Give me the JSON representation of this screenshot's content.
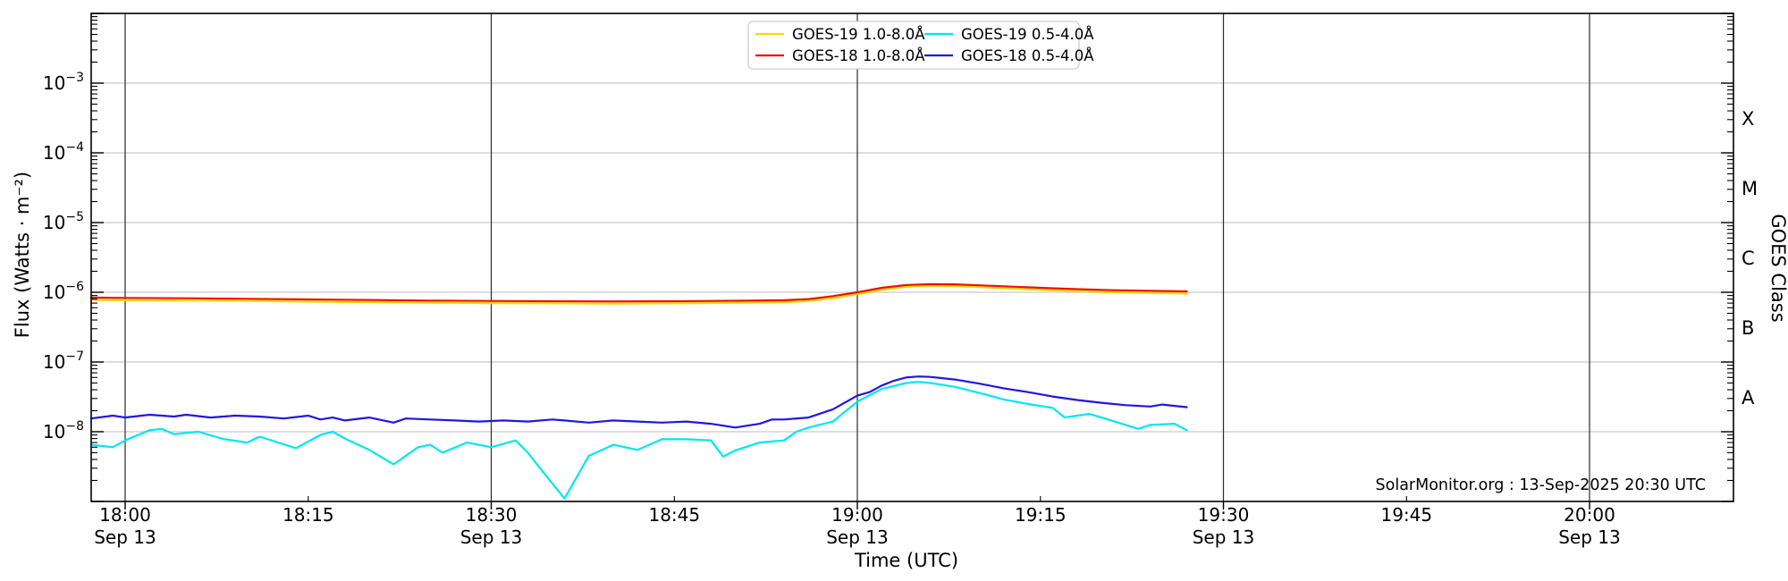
{
  "page": {
    "background_color": "#ffffff",
    "credit_text": "SolarMonitor.org : 13-Sep-2025 20:30 UTC"
  },
  "chart_data": {
    "type": "line",
    "title": "",
    "xlabel": "Time (UTC)",
    "ylabel": "Flux (Watts · m⁻²)",
    "ylabel_right": "GOES Class",
    "grid": {
      "horizontal_color": "#c9c9c9",
      "vertical_color": "#303030",
      "spine_color": "#000000"
    },
    "x_axis": {
      "start_minutes_from_1800": -2.78,
      "end_minutes_from_1800": 131.8,
      "major_ticks": [
        {
          "minutes": 0,
          "label": "18:00",
          "date": "Sep 13"
        },
        {
          "minutes": 30,
          "label": "18:30",
          "date": "Sep 13"
        },
        {
          "minutes": 60,
          "label": "19:00",
          "date": "Sep 13"
        },
        {
          "minutes": 90,
          "label": "19:30",
          "date": "Sep 13"
        },
        {
          "minutes": 120,
          "label": "20:00",
          "date": "Sep 13"
        }
      ],
      "minor_ticks": [
        {
          "minutes": 15,
          "label": "18:15"
        },
        {
          "minutes": 45,
          "label": "18:45"
        },
        {
          "minutes": 75,
          "label": "19:15"
        },
        {
          "minutes": 105,
          "label": "19:45"
        }
      ]
    },
    "y_axis": {
      "scale": "log",
      "min": 1e-09,
      "max": 0.01,
      "labeled_exponents": [
        -3,
        -4,
        -5,
        -6,
        -7,
        -8
      ]
    },
    "right_axis_classes": [
      {
        "label": "X",
        "center_exponent": -3.5
      },
      {
        "label": "M",
        "center_exponent": -4.5
      },
      {
        "label": "C",
        "center_exponent": -5.5
      },
      {
        "label": "B",
        "center_exponent": -6.5
      },
      {
        "label": "A",
        "center_exponent": -7.5
      }
    ],
    "legend": {
      "position": "top-center",
      "entries": [
        {
          "label": "GOES-19 1.0-8.0Å",
          "color": "#ffd400"
        },
        {
          "label": "GOES-18 1.0-8.0Å",
          "color": "#f01000"
        },
        {
          "label": "GOES-19 0.5-4.0Å",
          "color": "#00e6f2"
        },
        {
          "label": "GOES-18 0.5-4.0Å",
          "color": "#2016e0"
        }
      ]
    },
    "series": [
      {
        "name": "GOES-19 1.0-8.0Å",
        "color": "#ffd400",
        "units": "Watts/m2",
        "points_minutes_flux": [
          [
            -2.8,
            7.8e-07
          ],
          [
            0,
            7.7e-07
          ],
          [
            5,
            7.6e-07
          ],
          [
            10,
            7.5e-07
          ],
          [
            15,
            7.35e-07
          ],
          [
            20,
            7.2e-07
          ],
          [
            25,
            7.1e-07
          ],
          [
            30,
            7e-07
          ],
          [
            35,
            6.95e-07
          ],
          [
            40,
            6.9e-07
          ],
          [
            45,
            6.95e-07
          ],
          [
            50,
            7.05e-07
          ],
          [
            54,
            7.2e-07
          ],
          [
            56,
            7.5e-07
          ],
          [
            58,
            8.2e-07
          ],
          [
            60,
            9.4e-07
          ],
          [
            62,
            1.09e-06
          ],
          [
            64,
            1.2e-06
          ],
          [
            66,
            1.24e-06
          ],
          [
            68,
            1.23e-06
          ],
          [
            70,
            1.19e-06
          ],
          [
            72,
            1.15e-06
          ],
          [
            75,
            1.09e-06
          ],
          [
            78,
            1.04e-06
          ],
          [
            81,
            1e-06
          ],
          [
            84,
            9.8e-07
          ],
          [
            87,
            9.6e-07
          ]
        ]
      },
      {
        "name": "GOES-18 1.0-8.0Å",
        "color": "#f01000",
        "units": "Watts/m2",
        "points_minutes_flux": [
          [
            -2.8,
            8.4e-07
          ],
          [
            0,
            8.3e-07
          ],
          [
            5,
            8.2e-07
          ],
          [
            10,
            8.05e-07
          ],
          [
            15,
            7.9e-07
          ],
          [
            20,
            7.75e-07
          ],
          [
            25,
            7.6e-07
          ],
          [
            30,
            7.5e-07
          ],
          [
            35,
            7.45e-07
          ],
          [
            40,
            7.4e-07
          ],
          [
            45,
            7.45e-07
          ],
          [
            50,
            7.55e-07
          ],
          [
            54,
            7.7e-07
          ],
          [
            56,
            8e-07
          ],
          [
            58,
            8.8e-07
          ],
          [
            60,
            1e-06
          ],
          [
            62,
            1.16e-06
          ],
          [
            64,
            1.27e-06
          ],
          [
            66,
            1.31e-06
          ],
          [
            68,
            1.3e-06
          ],
          [
            70,
            1.26e-06
          ],
          [
            72,
            1.22e-06
          ],
          [
            75,
            1.16e-06
          ],
          [
            78,
            1.11e-06
          ],
          [
            81,
            1.07e-06
          ],
          [
            84,
            1.05e-06
          ],
          [
            87,
            1.03e-06
          ]
        ]
      },
      {
        "name": "GOES-19 0.5-4.0Å",
        "color": "#00e6f2",
        "units": "Watts/m2",
        "points_minutes_flux": [
          [
            -2.8,
            6.5e-09
          ],
          [
            -1,
            6e-09
          ],
          [
            0,
            7.5e-09
          ],
          [
            2,
            1.05e-08
          ],
          [
            3,
            1.1e-08
          ],
          [
            4,
            9.2e-09
          ],
          [
            6,
            1e-08
          ],
          [
            8,
            7.9e-09
          ],
          [
            10,
            7e-09
          ],
          [
            11,
            8.5e-09
          ],
          [
            12,
            7.5e-09
          ],
          [
            14,
            5.8e-09
          ],
          [
            16,
            9e-09
          ],
          [
            17,
            1e-08
          ],
          [
            18,
            8e-09
          ],
          [
            20,
            5.5e-09
          ],
          [
            22,
            3.4e-09
          ],
          [
            24,
            6e-09
          ],
          [
            25,
            6.5e-09
          ],
          [
            26,
            5e-09
          ],
          [
            28,
            7e-09
          ],
          [
            30,
            6e-09
          ],
          [
            32,
            7.5e-09
          ],
          [
            33,
            5e-09
          ],
          [
            34,
            3e-09
          ],
          [
            36,
            1.1e-09
          ],
          [
            38,
            4.5e-09
          ],
          [
            40,
            6.5e-09
          ],
          [
            42,
            5.5e-09
          ],
          [
            44,
            7.8e-09
          ],
          [
            46,
            7.8e-09
          ],
          [
            48,
            7.5e-09
          ],
          [
            49,
            4.4e-09
          ],
          [
            50,
            5.4e-09
          ],
          [
            52,
            7e-09
          ],
          [
            54,
            7.5e-09
          ],
          [
            55,
            1e-08
          ],
          [
            56,
            1.15e-08
          ],
          [
            58,
            1.4e-08
          ],
          [
            60,
            2.7e-08
          ],
          [
            62,
            4.1e-08
          ],
          [
            64,
            5e-08
          ],
          [
            65,
            5.2e-08
          ],
          [
            66,
            5e-08
          ],
          [
            68,
            4.4e-08
          ],
          [
            70,
            3.6e-08
          ],
          [
            72,
            2.9e-08
          ],
          [
            74,
            2.5e-08
          ],
          [
            76,
            2.2e-08
          ],
          [
            77,
            1.6e-08
          ],
          [
            78,
            1.7e-08
          ],
          [
            79,
            1.8e-08
          ],
          [
            80,
            1.6e-08
          ],
          [
            82,
            1.25e-08
          ],
          [
            83,
            1.1e-08
          ],
          [
            84,
            1.25e-08
          ],
          [
            86,
            1.3e-08
          ],
          [
            87,
            1.05e-08
          ]
        ]
      },
      {
        "name": "GOES-18 0.5-4.0Å",
        "color": "#2016e0",
        "units": "Watts/m2",
        "points_minutes_flux": [
          [
            -2.8,
            1.55e-08
          ],
          [
            -1,
            1.7e-08
          ],
          [
            0,
            1.6e-08
          ],
          [
            2,
            1.75e-08
          ],
          [
            4,
            1.65e-08
          ],
          [
            5,
            1.75e-08
          ],
          [
            7,
            1.6e-08
          ],
          [
            9,
            1.7e-08
          ],
          [
            11,
            1.65e-08
          ],
          [
            13,
            1.55e-08
          ],
          [
            15,
            1.7e-08
          ],
          [
            16,
            1.5e-08
          ],
          [
            17,
            1.6e-08
          ],
          [
            18,
            1.45e-08
          ],
          [
            20,
            1.6e-08
          ],
          [
            22,
            1.35e-08
          ],
          [
            23,
            1.55e-08
          ],
          [
            25,
            1.5e-08
          ],
          [
            27,
            1.45e-08
          ],
          [
            29,
            1.4e-08
          ],
          [
            31,
            1.45e-08
          ],
          [
            33,
            1.4e-08
          ],
          [
            35,
            1.5e-08
          ],
          [
            36,
            1.45e-08
          ],
          [
            38,
            1.35e-08
          ],
          [
            40,
            1.45e-08
          ],
          [
            42,
            1.4e-08
          ],
          [
            44,
            1.35e-08
          ],
          [
            46,
            1.4e-08
          ],
          [
            48,
            1.3e-08
          ],
          [
            50,
            1.15e-08
          ],
          [
            52,
            1.3e-08
          ],
          [
            53,
            1.5e-08
          ],
          [
            54,
            1.5e-08
          ],
          [
            56,
            1.6e-08
          ],
          [
            58,
            2.1e-08
          ],
          [
            60,
            3.3e-08
          ],
          [
            61,
            3.7e-08
          ],
          [
            62,
            4.6e-08
          ],
          [
            63,
            5.4e-08
          ],
          [
            64,
            6e-08
          ],
          [
            65,
            6.2e-08
          ],
          [
            66,
            6.1e-08
          ],
          [
            68,
            5.6e-08
          ],
          [
            70,
            4.9e-08
          ],
          [
            72,
            4.2e-08
          ],
          [
            74,
            3.7e-08
          ],
          [
            76,
            3.2e-08
          ],
          [
            78,
            2.85e-08
          ],
          [
            80,
            2.6e-08
          ],
          [
            82,
            2.4e-08
          ],
          [
            84,
            2.3e-08
          ],
          [
            85,
            2.45e-08
          ],
          [
            86,
            2.35e-08
          ],
          [
            87,
            2.25e-08
          ]
        ]
      }
    ]
  }
}
